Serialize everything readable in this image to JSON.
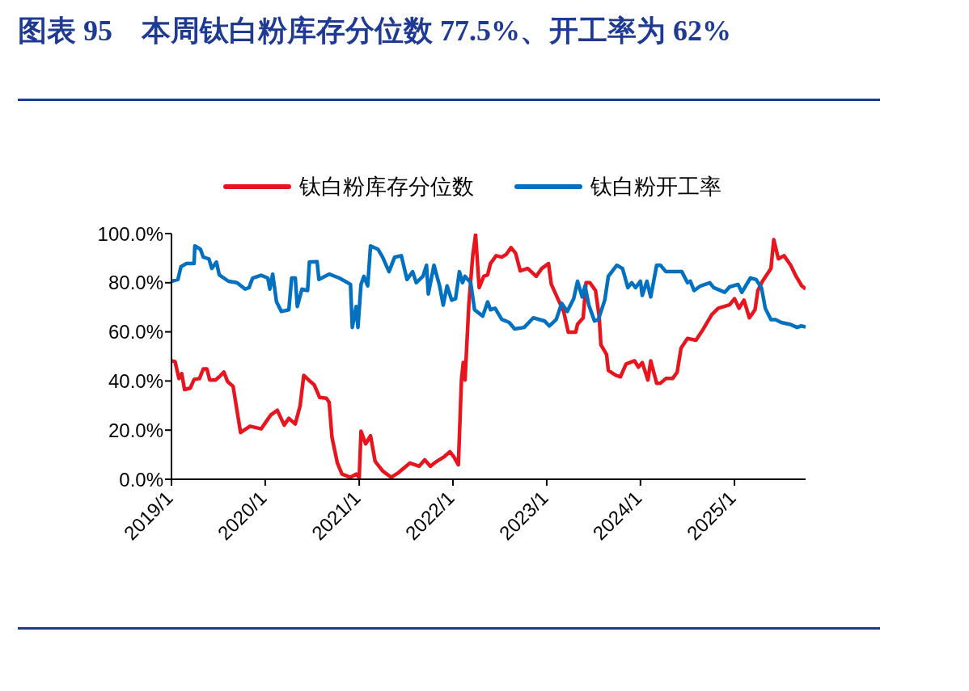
{
  "chart_data": {
    "type": "line",
    "title": "图表 95　本周钛白粉库存分位数 77.5%、开工率为 62%",
    "legend": "top",
    "xlim": [
      "2019-01-01",
      "2025-10-05"
    ],
    "xticks": [
      {
        "value": "2019-01-01",
        "label": "2019/1"
      },
      {
        "value": "2020-01-01",
        "label": "2020/1"
      },
      {
        "value": "2021-01-01",
        "label": "2021/1"
      },
      {
        "value": "2022-01-01",
        "label": "2022/1"
      },
      {
        "value": "2023-01-01",
        "label": "2023/1"
      },
      {
        "value": "2024-01-01",
        "label": "2024/1"
      },
      {
        "value": "2025-01-01",
        "label": "2025/1"
      }
    ],
    "ylim": [
      0,
      100
    ],
    "yticks": [
      {
        "value": 0,
        "label": "0.0%"
      },
      {
        "value": 20,
        "label": "20.0%"
      },
      {
        "value": 40,
        "label": "40.0%"
      },
      {
        "value": 60,
        "label": "60.0%"
      },
      {
        "value": 80,
        "label": "80.0%"
      },
      {
        "value": 100,
        "label": "100.0%"
      }
    ],
    "series": [
      {
        "name": "钛白粉库存分位数",
        "color": "#e8141e",
        "x": [
          "2019-01-01",
          "2019-01-15",
          "2019-01-30",
          "2019-02-10",
          "2019-02-21",
          "2019-03-15",
          "2019-03-30",
          "2019-04-20",
          "2019-05-05",
          "2019-05-19",
          "2019-05-30",
          "2019-06-21",
          "2019-07-06",
          "2019-07-24",
          "2019-08-08",
          "2019-08-29",
          "2019-09-27",
          "2019-11-03",
          "2019-12-16",
          "2020-01-01",
          "2020-01-22",
          "2020-02-17",
          "2020-03-15",
          "2020-04-02",
          "2020-04-27",
          "2020-05-16",
          "2020-05-30",
          "2020-06-18",
          "2020-07-10",
          "2020-07-31",
          "2020-08-26",
          "2020-09-06",
          "2020-09-17",
          "2020-10-08",
          "2020-10-26",
          "2020-11-28",
          "2020-12-20",
          "2021-01-01",
          "2021-01-08",
          "2021-01-26",
          "2021-02-14",
          "2021-03-04",
          "2021-04-02",
          "2021-05-05",
          "2021-06-03",
          "2021-07-17",
          "2021-08-22",
          "2021-09-13",
          "2021-10-05",
          "2021-10-30",
          "2021-11-28",
          "2021-12-20",
          "2022-01-04",
          "2022-01-22",
          "2022-02-03",
          "2022-02-10",
          "2022-02-17",
          "2022-03-04",
          "2022-03-19",
          "2022-03-30",
          "2022-04-13",
          "2022-05-01",
          "2022-05-16",
          "2022-05-27",
          "2022-06-18",
          "2022-07-10",
          "2022-07-28",
          "2022-08-15",
          "2022-09-02",
          "2022-09-20",
          "2022-10-19",
          "2022-11-21",
          "2022-12-13",
          "2023-01-08",
          "2023-01-19",
          "2023-02-10",
          "2023-03-08",
          "2023-03-26",
          "2023-04-24",
          "2023-05-01",
          "2023-05-23",
          "2023-06-03",
          "2023-06-18",
          "2023-07-10",
          "2023-07-24",
          "2023-07-31",
          "2023-08-22",
          "2023-08-29",
          "2023-09-27",
          "2023-10-15",
          "2023-11-06",
          "2023-12-09",
          "2023-12-24",
          "2024-01-08",
          "2024-01-30",
          "2024-02-10",
          "2024-03-04",
          "2024-03-19",
          "2024-04-09",
          "2024-05-05",
          "2024-05-23",
          "2024-06-07",
          "2024-07-02",
          "2024-08-04",
          "2024-09-02",
          "2024-10-05",
          "2024-10-30",
          "2024-12-13",
          "2025-01-01",
          "2025-01-19",
          "2025-02-07",
          "2025-02-28",
          "2025-03-22",
          "2025-04-02",
          "2025-04-20",
          "2025-05-23",
          "2025-06-03",
          "2025-06-21",
          "2025-07-13",
          "2025-08-08",
          "2025-08-29",
          "2025-09-20",
          "2025-10-05"
        ],
        "values": [
          48.2,
          47.9,
          41,
          43,
          36.5,
          37.1,
          40.6,
          41,
          44.9,
          44.9,
          40.4,
          40.4,
          41.7,
          43.6,
          39.7,
          37.8,
          19,
          21.6,
          20.5,
          22.9,
          26.1,
          28.1,
          22,
          24.8,
          22.5,
          30,
          42.3,
          40.4,
          38.4,
          33.3,
          33,
          31.3,
          17,
          6.6,
          2.1,
          0.8,
          2.1,
          0.8,
          19.6,
          14.4,
          17.7,
          7.3,
          3.4,
          0.8,
          2.7,
          6.6,
          5.3,
          7.9,
          5.3,
          7.3,
          9.2,
          11.2,
          9.2,
          5.9,
          40.4,
          47.5,
          40.4,
          71.6,
          91,
          99.5,
          78,
          82.6,
          83.2,
          87.8,
          91,
          90.4,
          91.6,
          94.3,
          92,
          84.8,
          85.8,
          82.6,
          85.8,
          87.8,
          79.3,
          74.2,
          68.3,
          59.9,
          59.9,
          63.1,
          65.7,
          80,
          80,
          76.8,
          66.4,
          54.7,
          50.8,
          44.3,
          42.3,
          41.7,
          46.9,
          48.2,
          45.6,
          47.5,
          40.4,
          48.2,
          39.1,
          39.1,
          41,
          41,
          43.6,
          53.4,
          57.3,
          56.6,
          61.2,
          67.1,
          69.6,
          71,
          73.5,
          69.6,
          72.9,
          65.7,
          69,
          76.8,
          80.6,
          85.8,
          97.5,
          89.7,
          91,
          87.1,
          82.6,
          78.7,
          77.5
        ]
      },
      {
        "name": "钛白粉开工率",
        "color": "#0070c0",
        "x": [
          "2019-01-01",
          "2019-01-26",
          "2019-02-07",
          "2019-02-28",
          "2019-03-30",
          "2019-04-02",
          "2019-04-24",
          "2019-05-05",
          "2019-05-27",
          "2019-06-07",
          "2019-06-25",
          "2019-07-06",
          "2019-08-11",
          "2019-09-13",
          "2019-10-15",
          "2019-10-30",
          "2019-11-13",
          "2019-12-16",
          "2020-01-11",
          "2020-01-19",
          "2020-01-30",
          "2020-02-14",
          "2020-03-04",
          "2020-04-02",
          "2020-04-13",
          "2020-04-27",
          "2020-05-05",
          "2020-05-23",
          "2020-06-14",
          "2020-06-21",
          "2020-07-21",
          "2020-07-28",
          "2020-09-06",
          "2020-10-15",
          "2020-11-17",
          "2020-11-28",
          "2020-12-05",
          "2020-12-20",
          "2020-12-27",
          "2021-01-08",
          "2021-01-19",
          "2021-02-03",
          "2021-02-14",
          "2021-03-15",
          "2021-04-02",
          "2021-04-27",
          "2021-05-19",
          "2021-06-14",
          "2021-07-06",
          "2021-07-28",
          "2021-08-11",
          "2021-09-06",
          "2021-09-20",
          "2021-09-27",
          "2021-10-19",
          "2021-11-10",
          "2021-11-24",
          "2021-12-09",
          "2021-12-27",
          "2022-01-11",
          "2022-01-26",
          "2022-02-07",
          "2022-02-17",
          "2022-03-11",
          "2022-03-26",
          "2022-04-27",
          "2022-05-16",
          "2022-05-27",
          "2022-06-14",
          "2022-07-10",
          "2022-08-08",
          "2022-08-29",
          "2022-10-05",
          "2022-11-10",
          "2022-12-24",
          "2023-01-11",
          "2023-02-07",
          "2023-02-28",
          "2023-03-22",
          "2023-04-16",
          "2023-05-01",
          "2023-05-19",
          "2023-05-30",
          "2023-06-14",
          "2023-07-06",
          "2023-07-21",
          "2023-08-15",
          "2023-08-29",
          "2023-10-01",
          "2023-10-23",
          "2023-11-13",
          "2023-11-28",
          "2023-12-13",
          "2024-01-01",
          "2024-01-08",
          "2024-01-26",
          "2024-02-10",
          "2024-03-04",
          "2024-03-19",
          "2024-04-09",
          "2024-05-19",
          "2024-06-10",
          "2024-07-02",
          "2024-07-13",
          "2024-07-28",
          "2024-08-22",
          "2024-09-27",
          "2024-10-12",
          "2024-11-24",
          "2024-12-13",
          "2025-01-15",
          "2025-01-30",
          "2025-03-04",
          "2025-03-26",
          "2025-04-16",
          "2025-05-01",
          "2025-05-23",
          "2025-06-10",
          "2025-07-02",
          "2025-08-04",
          "2025-09-02",
          "2025-09-17",
          "2025-10-05"
        ],
        "values": [
          80.6,
          81.3,
          86.5,
          87.8,
          87.8,
          95,
          93.6,
          90.4,
          89.7,
          85.8,
          88.4,
          83.2,
          80.6,
          80,
          77.4,
          78,
          81.9,
          83,
          81.9,
          77.4,
          83.5,
          72.2,
          68.3,
          69,
          81.9,
          81.9,
          70.3,
          77.4,
          76.8,
          88.4,
          88.6,
          81.3,
          83.5,
          81.9,
          80,
          79.3,
          61.8,
          70.3,
          61.8,
          79.3,
          82.6,
          78.7,
          95,
          93.6,
          90.4,
          84.5,
          90.4,
          91,
          81.3,
          84.5,
          80,
          82.6,
          87.1,
          75.4,
          87.1,
          78.7,
          70.9,
          78.7,
          72.9,
          73.5,
          84.5,
          80,
          82.6,
          80,
          69,
          66.4,
          72.2,
          69,
          69.6,
          65.1,
          63.8,
          61.2,
          61.8,
          65.7,
          64.4,
          62.4,
          65,
          71.6,
          68.3,
          73.5,
          80.6,
          74.2,
          78.7,
          70.9,
          64.4,
          65,
          72.9,
          82.6,
          87.1,
          85.8,
          78,
          80,
          78,
          80.6,
          74.8,
          80.6,
          74.2,
          87.1,
          87.1,
          84.5,
          84.5,
          84.5,
          80,
          80.6,
          76.8,
          78.7,
          80,
          78,
          76.1,
          78.3,
          79.3,
          76.1,
          81.9,
          81.3,
          78,
          69.6,
          65,
          65,
          63.8,
          63.1,
          61.8,
          62.4,
          62
        ]
      }
    ]
  }
}
